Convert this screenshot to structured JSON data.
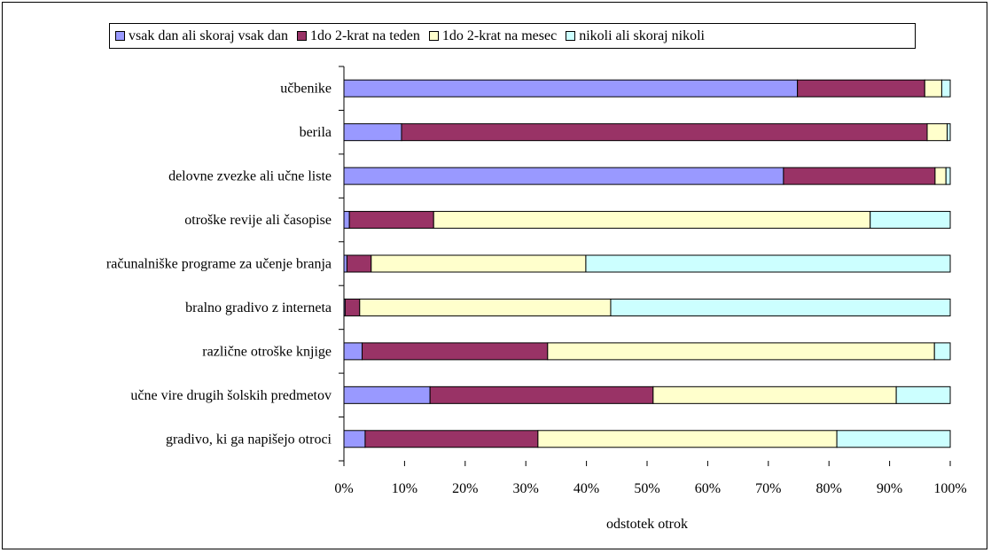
{
  "chart_data": {
    "type": "bar",
    "orientation": "horizontal",
    "stacked": true,
    "percent": true,
    "categories": [
      "učbenike",
      "berila",
      "delovne zvezke ali učne liste",
      "otroške revije ali časopise",
      "računalniške programe za učenje branja",
      "bralno gradivo z interneta",
      "različne otroške knjige",
      "učne vire drugih šolskih predmetov",
      "gradivo, ki ga napišejo otroci"
    ],
    "series": [
      {
        "name": "vsak dan ali skoraj vsak dan",
        "color": "#9999ff",
        "values": [
          74.8,
          9.5,
          72.5,
          0.9,
          0.5,
          0.2,
          3.0,
          14.2,
          3.5
        ]
      },
      {
        "name": "1do 2-krat na teden",
        "color": "#993366",
        "values": [
          21.0,
          86.7,
          25.0,
          13.9,
          4.0,
          2.4,
          30.6,
          36.8,
          28.5
        ]
      },
      {
        "name": "1do 2-krat na mesec",
        "color": "#ffffcc",
        "values": [
          2.8,
          3.3,
          1.8,
          72.0,
          35.4,
          41.4,
          63.8,
          40.1,
          49.3
        ]
      },
      {
        "name": "nikoli ali skoraj nikoli",
        "color": "#ccffff",
        "values": [
          1.4,
          0.5,
          0.7,
          13.2,
          60.1,
          56.0,
          2.6,
          8.9,
          18.7
        ]
      }
    ],
    "x_ticks": [
      "0%",
      "10%",
      "20%",
      "30%",
      "40%",
      "50%",
      "60%",
      "70%",
      "80%",
      "90%",
      "100%"
    ],
    "xlim": [
      0,
      100
    ],
    "xlabel": "odstotek otrok",
    "ylabel": "",
    "title": "",
    "legend_position": "top",
    "grid": false
  }
}
